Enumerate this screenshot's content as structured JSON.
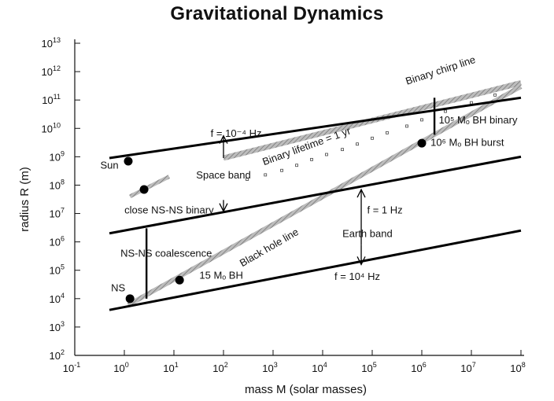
{
  "chart_data": {
    "type": "line",
    "title": "Gravitational Dynamics",
    "xlabel": "mass M (solar masses)",
    "ylabel": "radius R (m)",
    "x_scale": "log",
    "y_scale": "log",
    "xlim": [
      0.1,
      100000000
    ],
    "ylim": [
      100,
      10000000000000
    ],
    "x_ticks": [
      {
        "base": "10",
        "exp": "-1",
        "value": 0.1
      },
      {
        "base": "10",
        "exp": "0",
        "value": 1
      },
      {
        "base": "10",
        "exp": "1",
        "value": 10
      },
      {
        "base": "10",
        "exp": "2",
        "value": 100
      },
      {
        "base": "10",
        "exp": "3",
        "value": 1000
      },
      {
        "base": "10",
        "exp": "4",
        "value": 10000
      },
      {
        "base": "10",
        "exp": "5",
        "value": 100000
      },
      {
        "base": "10",
        "exp": "6",
        "value": 1000000
      },
      {
        "base": "10",
        "exp": "7",
        "value": 10000000
      },
      {
        "base": "10",
        "exp": "8",
        "value": 100000000
      }
    ],
    "y_ticks": [
      {
        "base": "10",
        "exp": "2",
        "value": 100
      },
      {
        "base": "10",
        "exp": "3",
        "value": 1000
      },
      {
        "base": "10",
        "exp": "4",
        "value": 10000
      },
      {
        "base": "10",
        "exp": "5",
        "value": 100000
      },
      {
        "base": "10",
        "exp": "6",
        "value": 1000000
      },
      {
        "base": "10",
        "exp": "7",
        "value": 10000000
      },
      {
        "base": "10",
        "exp": "8",
        "value": 100000000
      },
      {
        "base": "10",
        "exp": "9",
        "value": 1000000000
      },
      {
        "base": "10",
        "exp": "10",
        "value": 10000000000
      },
      {
        "base": "10",
        "exp": "11",
        "value": 100000000000
      },
      {
        "base": "10",
        "exp": "12",
        "value": 1000000000000
      },
      {
        "base": "10",
        "exp": "13",
        "value": 10000000000000
      }
    ],
    "grid": false,
    "frequency_lines": [
      {
        "x": [
          0.5,
          100000000
        ],
        "y": [
          900000000,
          120000000000
        ]
      },
      {
        "x": [
          0.5,
          100000000
        ],
        "y": [
          2000000,
          1000000000
        ]
      },
      {
        "x": [
          0.5,
          100000000
        ],
        "y": [
          4000,
          2500000
        ]
      }
    ],
    "black_hole_line": {
      "x": [
        1.2,
        100000000
      ],
      "y": [
        6000,
        300000000000
      ]
    },
    "binary_chirp_line": {
      "x": [
        100,
        100000000
      ],
      "y": [
        900000000,
        400000000000
      ]
    },
    "close_ns_line": {
      "x": [
        1.3,
        8
      ],
      "y": [
        40000000,
        200000000
      ]
    },
    "binary_lifetime_points": {
      "x": [
        300,
        700,
        1500,
        3000,
        6000,
        12000,
        25000,
        50000,
        100000,
        200000,
        500000,
        1000000,
        3000000,
        10000000,
        30000000
      ],
      "y": [
        160000000,
        230000000,
        330000000,
        500000000,
        800000000,
        1200000000,
        1800000000,
        2800000000,
        4500000000,
        7000000000,
        12000000000,
        20000000000,
        40000000000,
        80000000000,
        150000000000
      ]
    },
    "objects": [
      {
        "x": 1.2,
        "y": 700000000
      },
      {
        "x": 2.5,
        "y": 70000000
      },
      {
        "x": 1.3,
        "y": 10000
      },
      {
        "x": 13,
        "y": 45000
      },
      {
        "x": 1000000,
        "y": 3000000000
      }
    ],
    "vertical_bars": [
      {
        "x": 2.8,
        "y1": 10000,
        "y2": 3000000
      },
      {
        "x": 1800000,
        "y1": 6000000000,
        "y2": 120000000000
      }
    ],
    "arrows": [
      {
        "x": 100,
        "y_from": 900000000,
        "y_to": 5500000000
      },
      {
        "x": 100,
        "y_from": 30000000,
        "y_to": 12000000
      },
      {
        "x": 60000,
        "y_from": 800000,
        "y_to": 70000000
      },
      {
        "x": 60000,
        "y_from": 800000,
        "y_to": 160000
      }
    ],
    "annotations": [
      {
        "text": "Binary chirp line",
        "x": 2500000,
        "y": 850000000000,
        "rotate": -18,
        "anchor": "middle"
      },
      {
        "text": "f = 10⁻⁴ Hz",
        "x": 180,
        "y": 5000000000,
        "rotate": 0,
        "anchor": "middle"
      },
      {
        "text": "10⁵ Mₒ BH binary",
        "x": 2200000,
        "y": 15000000000,
        "rotate": 0,
        "anchor": "start"
      },
      {
        "text": "Binary lifetime = 1 yr",
        "x": 5000,
        "y": 1800000000,
        "rotate": -20,
        "anchor": "middle"
      },
      {
        "text": "10⁶ Mₒ BH burst",
        "x": 1500000,
        "y": 2400000000,
        "rotate": 0,
        "anchor": "start"
      },
      {
        "text": "Sun",
        "x": 0.5,
        "y": 380000000,
        "rotate": 0,
        "anchor": "middle"
      },
      {
        "text": "Space band",
        "x": 100,
        "y": 170000000,
        "rotate": 0,
        "anchor": "middle"
      },
      {
        "text": "close NS-NS binary",
        "x": 8,
        "y": 10000000,
        "rotate": 0,
        "anchor": "middle"
      },
      {
        "text": "f = 1 Hz",
        "x": 180000,
        "y": 10000000,
        "rotate": 0,
        "anchor": "middle"
      },
      {
        "text": "Earth band",
        "x": 80000,
        "y": 1500000,
        "rotate": 0,
        "anchor": "middle"
      },
      {
        "text": "NS-NS coalescence",
        "x": 7,
        "y": 300000,
        "rotate": 0,
        "anchor": "middle"
      },
      {
        "text": "Black hole line",
        "x": 900,
        "y": 500000,
        "rotate": -30,
        "anchor": "middle"
      },
      {
        "text": "15 Mₒ BH",
        "x": 90,
        "y": 50000,
        "rotate": 0,
        "anchor": "middle"
      },
      {
        "text": "NS",
        "x": 0.75,
        "y": 18000,
        "rotate": 0,
        "anchor": "middle"
      },
      {
        "text": "f = 10⁴ Hz",
        "x": 50000,
        "y": 45000,
        "rotate": 0,
        "anchor": "middle"
      }
    ]
  }
}
